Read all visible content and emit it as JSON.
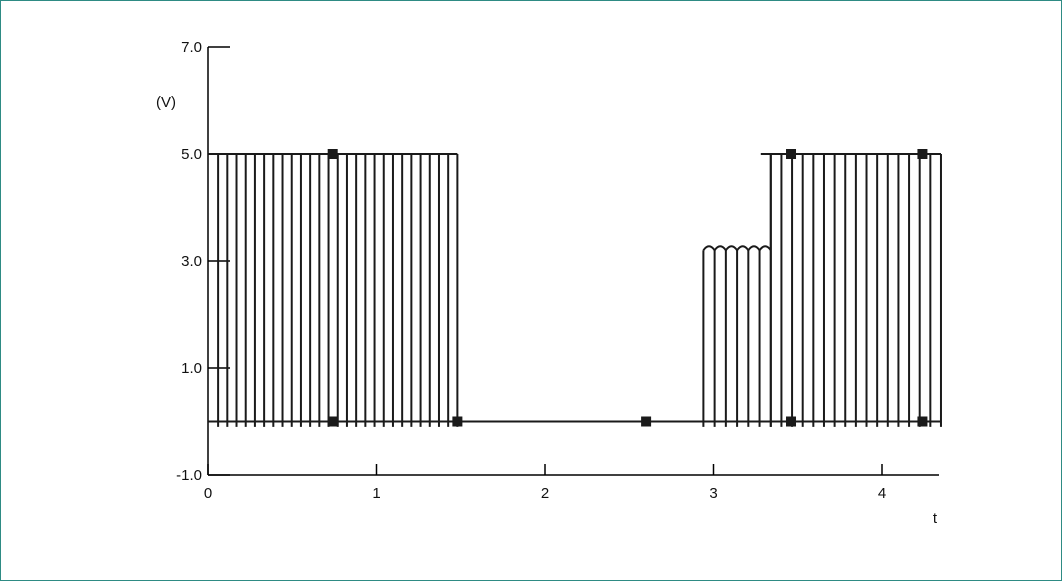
{
  "chart_data": {
    "type": "line",
    "title": "",
    "xlabel": "t",
    "ylabel": "(V)",
    "xlim": [
      0,
      4.35
    ],
    "ylim": [
      -1.0,
      7.0
    ],
    "x_ticks": [
      0,
      1,
      2,
      3,
      4
    ],
    "x_tick_labels": [
      "0",
      "1",
      "2",
      "3",
      "4"
    ],
    "y_ticks": [
      -1.0,
      1.0,
      3.0,
      5.0,
      7.0
    ],
    "y_tick_labels": [
      "-1.0",
      "1.0",
      "3.0",
      "5.0",
      "7.0"
    ],
    "grid": false,
    "series": [
      {
        "segments": [
          {
            "x_start": 0.06,
            "x_end": 1.48,
            "high": 5.0,
            "low": -0.1,
            "pulse_count": 26
          },
          {
            "x_start": 1.48,
            "x_end": 2.94,
            "level": 0.0
          },
          {
            "x_start": 2.94,
            "x_end": 3.34,
            "high": 3.2,
            "low": -0.1,
            "pulse_count": 6
          },
          {
            "x_start": 3.34,
            "x_end": 4.35,
            "high": 5.0,
            "low": -0.1,
            "pulse_count": 16
          }
        ],
        "markers": [
          {
            "x": 0.74,
            "y": 5.0
          },
          {
            "x": 0.74,
            "y": 0.0
          },
          {
            "x": 1.48,
            "y": 0.0
          },
          {
            "x": 2.6,
            "y": 0.0
          },
          {
            "x": 3.46,
            "y": 5.0
          },
          {
            "x": 3.46,
            "y": 0.0
          },
          {
            "x": 4.24,
            "y": 5.0
          },
          {
            "x": 4.24,
            "y": 0.0
          }
        ]
      }
    ]
  }
}
